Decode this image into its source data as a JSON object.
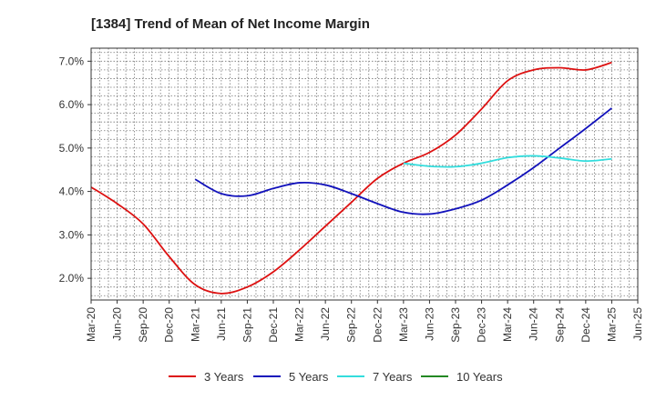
{
  "chart_data": {
    "type": "line",
    "title": "[1384]  Trend of Mean of Net Income Margin",
    "xlabel": "",
    "ylabel": "",
    "ylim": [
      1.5,
      7.3
    ],
    "grid": true,
    "legend_position": "bottom",
    "x_ticks": [
      "Mar-20",
      "Jun-20",
      "Sep-20",
      "Dec-20",
      "Mar-21",
      "Jun-21",
      "Sep-21",
      "Dec-21",
      "Mar-22",
      "Jun-22",
      "Sep-22",
      "Dec-22",
      "Mar-23",
      "Jun-23",
      "Sep-23",
      "Dec-23",
      "Mar-24",
      "Jun-24",
      "Sep-24",
      "Dec-24",
      "Mar-25",
      "Jun-25"
    ],
    "y_ticks": [
      {
        "value": 2.0,
        "label": "2.0%"
      },
      {
        "value": 3.0,
        "label": "3.0%"
      },
      {
        "value": 4.0,
        "label": "4.0%"
      },
      {
        "value": 5.0,
        "label": "5.0%"
      },
      {
        "value": 6.0,
        "label": "6.0%"
      },
      {
        "value": 7.0,
        "label": "7.0%"
      }
    ],
    "series": [
      {
        "name": "3 Years",
        "color": "#dd1111",
        "values": [
          4.1,
          3.72,
          3.25,
          2.5,
          1.85,
          1.65,
          1.8,
          2.15,
          2.65,
          3.2,
          3.75,
          4.3,
          4.65,
          4.9,
          5.3,
          5.9,
          6.55,
          6.8,
          6.85,
          6.8,
          6.97,
          null
        ]
      },
      {
        "name": "5 Years",
        "color": "#1111bb",
        "values": [
          null,
          null,
          null,
          null,
          4.28,
          3.95,
          3.9,
          4.07,
          4.2,
          4.15,
          3.95,
          3.72,
          3.52,
          3.48,
          3.6,
          3.8,
          4.15,
          4.55,
          5.0,
          5.45,
          5.92,
          null
        ]
      },
      {
        "name": "7 Years",
        "color": "#33dddd",
        "values": [
          null,
          null,
          null,
          null,
          null,
          null,
          null,
          null,
          null,
          null,
          null,
          null,
          4.65,
          4.58,
          4.57,
          4.65,
          4.78,
          4.82,
          4.77,
          4.7,
          4.75,
          null
        ]
      },
      {
        "name": "10 Years",
        "color": "#228822",
        "values": []
      }
    ]
  }
}
